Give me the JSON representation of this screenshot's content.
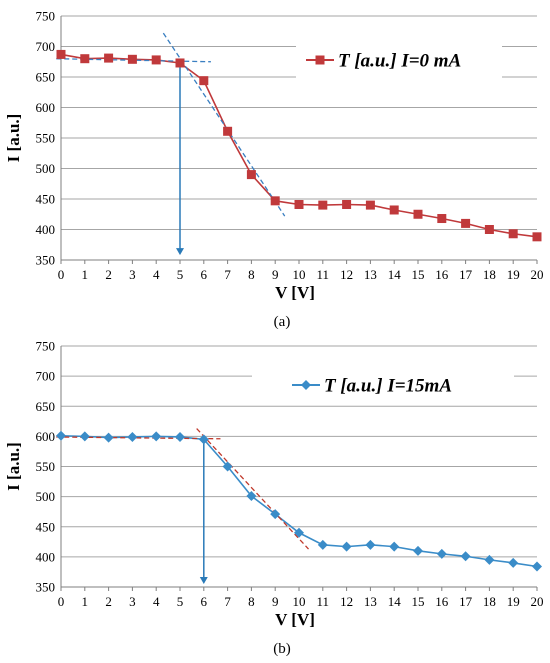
{
  "chart_data": [
    {
      "type": "line",
      "panel_label": "(a)",
      "xlabel": "V [V]",
      "ylabel": "I  [a.u.]",
      "xlim": [
        0,
        20
      ],
      "ylim": [
        350,
        750
      ],
      "x_ticks": [
        "0",
        "1",
        "2",
        "3",
        "4",
        "5",
        "6",
        "7",
        "8",
        "9",
        "10",
        "11",
        "12",
        "13",
        "14",
        "15",
        "16",
        "17",
        "18",
        "19",
        "20"
      ],
      "y_ticks": [
        "350",
        "400",
        "450",
        "500",
        "550",
        "600",
        "650",
        "700",
        "750"
      ],
      "grid": "horizontal",
      "legend_position": "top-right",
      "series": [
        {
          "name": "T [a.u.] I=0 mA",
          "marker": "square",
          "color": "#c0393b",
          "x": [
            0,
            1,
            2,
            3,
            4,
            5,
            6,
            7,
            8,
            9,
            10,
            11,
            12,
            13,
            14,
            15,
            16,
            17,
            18,
            19,
            20
          ],
          "y": [
            687,
            680,
            681,
            679,
            678,
            673,
            644,
            561,
            490,
            447,
            441,
            440,
            441,
            440,
            432,
            425,
            418,
            410,
            400,
            393,
            388
          ]
        }
      ],
      "annotations": {
        "tangent_color": "#3a7fc1",
        "tangent_lines": [
          {
            "x": [
              -0.2,
              6.3
            ],
            "y": [
              680,
              675
            ]
          },
          {
            "x": [
              4.3,
              9.4
            ],
            "y": [
              722,
              422
            ]
          }
        ],
        "arrow": {
          "x": 5,
          "y_from": 673,
          "y_to": 358,
          "color": "#2a7ab8"
        }
      }
    },
    {
      "type": "line",
      "panel_label": "(b)",
      "xlabel": "V [V]",
      "ylabel": "I  [a.u.]",
      "xlim": [
        0,
        20
      ],
      "ylim": [
        350,
        750
      ],
      "x_ticks": [
        "0",
        "1",
        "2",
        "3",
        "4",
        "5",
        "6",
        "7",
        "8",
        "9",
        "10",
        "11",
        "12",
        "13",
        "14",
        "15",
        "16",
        "17",
        "18",
        "19",
        "20"
      ],
      "y_ticks": [
        "350",
        "400",
        "450",
        "500",
        "550",
        "600",
        "650",
        "700",
        "750"
      ],
      "grid": "horizontal",
      "legend_position": "top-right",
      "series": [
        {
          "name": "T [a.u.] I=15mA",
          "marker": "diamond",
          "color": "#3a8cc8",
          "x": [
            0,
            1,
            2,
            3,
            4,
            5,
            6,
            7,
            8,
            9,
            10,
            11,
            12,
            13,
            14,
            15,
            16,
            17,
            18,
            19,
            20
          ],
          "y": [
            601,
            600,
            598,
            599,
            600,
            599,
            595,
            550,
            501,
            471,
            440,
            420,
            417,
            420,
            417,
            410,
            405,
            401,
            395,
            390,
            384
          ]
        }
      ],
      "annotations": {
        "tangent_color": "#c0392b",
        "tangent_lines": [
          {
            "x": [
              -0.2,
              6.7
            ],
            "y": [
              599,
              596
            ]
          },
          {
            "x": [
              5.7,
              10.4
            ],
            "y": [
              613,
              413
            ]
          }
        ],
        "arrow": {
          "x": 6,
          "y_from": 595,
          "y_to": 355,
          "color": "#2a7ab8"
        }
      }
    }
  ]
}
